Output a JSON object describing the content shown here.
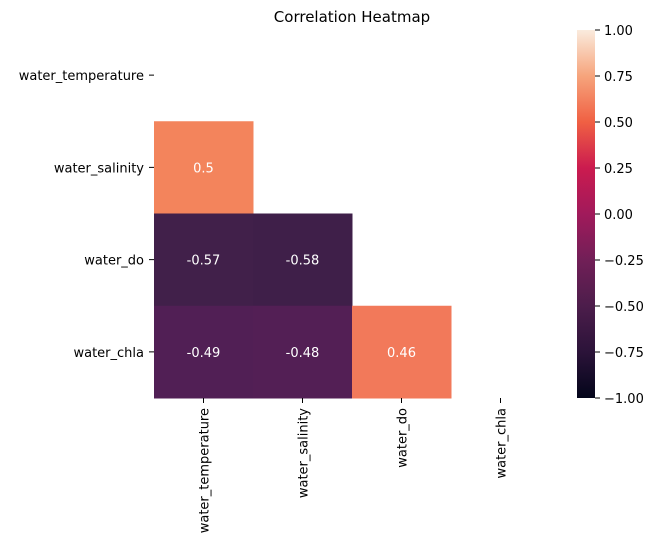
{
  "chart_data": {
    "type": "heatmap",
    "title": "Correlation Heatmap",
    "rows": [
      "water_temperature",
      "water_salinity",
      "water_do",
      "water_chla"
    ],
    "columns": [
      "water_temperature",
      "water_salinity",
      "water_do",
      "water_chla"
    ],
    "values": [
      [
        null,
        null,
        null,
        null
      ],
      [
        0.5,
        null,
        null,
        null
      ],
      [
        -0.57,
        -0.58,
        null,
        null
      ],
      [
        -0.49,
        -0.48,
        0.46,
        null
      ]
    ],
    "mask": "upper triangle incl. diagonal",
    "colorbar": {
      "colormap": "rocket",
      "vmin": -1.0,
      "vmax": 1.0,
      "ticks": [
        "1.00",
        "0.75",
        "0.50",
        "0.25",
        "0.00",
        "−0.25",
        "−0.50",
        "−0.75",
        "−1.00"
      ],
      "tick_values": [
        1.0,
        0.75,
        0.5,
        0.25,
        0.0,
        -0.25,
        -0.5,
        -0.75,
        -1.0
      ]
    },
    "colors": {
      "0.5": "#f3845c",
      "0.46": "#f2795a",
      "-0.48": "#531f55",
      "-0.49": "#511f55",
      "-0.57": "#41204a",
      "-0.58": "#3f1f49"
    }
  }
}
